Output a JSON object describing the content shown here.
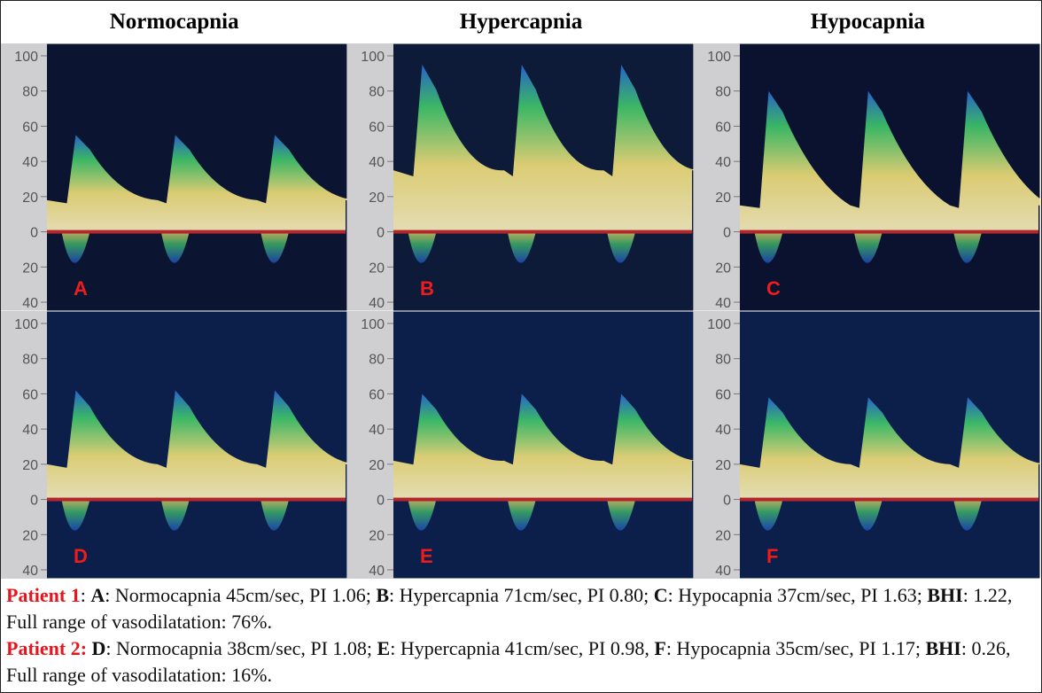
{
  "header": {
    "columns": [
      "Normocapnia",
      "Hypercapnia",
      "Hypocapnia"
    ]
  },
  "axis_labels": [
    "100",
    "80",
    "60",
    "40",
    "20",
    "0",
    "20",
    "40"
  ],
  "panels": [
    {
      "letter": "A"
    },
    {
      "letter": "B"
    },
    {
      "letter": "C"
    },
    {
      "letter": "D"
    },
    {
      "letter": "E"
    },
    {
      "letter": "F"
    }
  ],
  "caption": {
    "paragraphs": [
      {
        "parts": [
          "Patient 1",
          ": ",
          "A",
          ": Normocapnia 45cm/sec, PI 1.06; ",
          "B",
          ": Hypercapnia 71cm/sec, PI 0.80; ",
          "C",
          ": Hypocapnia 37cm/sec, PI 1.63; ",
          "BHI",
          ": 1.22, Full range of vasodilatation: 76%."
        ]
      },
      {
        "parts": [
          "Patient 2: ",
          "D",
          ": Normocapnia 38cm/sec, PI 1.08; ",
          "E",
          ": Hypercapnia 41cm/sec, PI 0.98, ",
          "F",
          ": Hypocapnia 35cm/sec, PI 1.17; ",
          "BHI",
          ": 0.26, Full range of vasodilatation: 16%."
        ]
      }
    ]
  }
}
